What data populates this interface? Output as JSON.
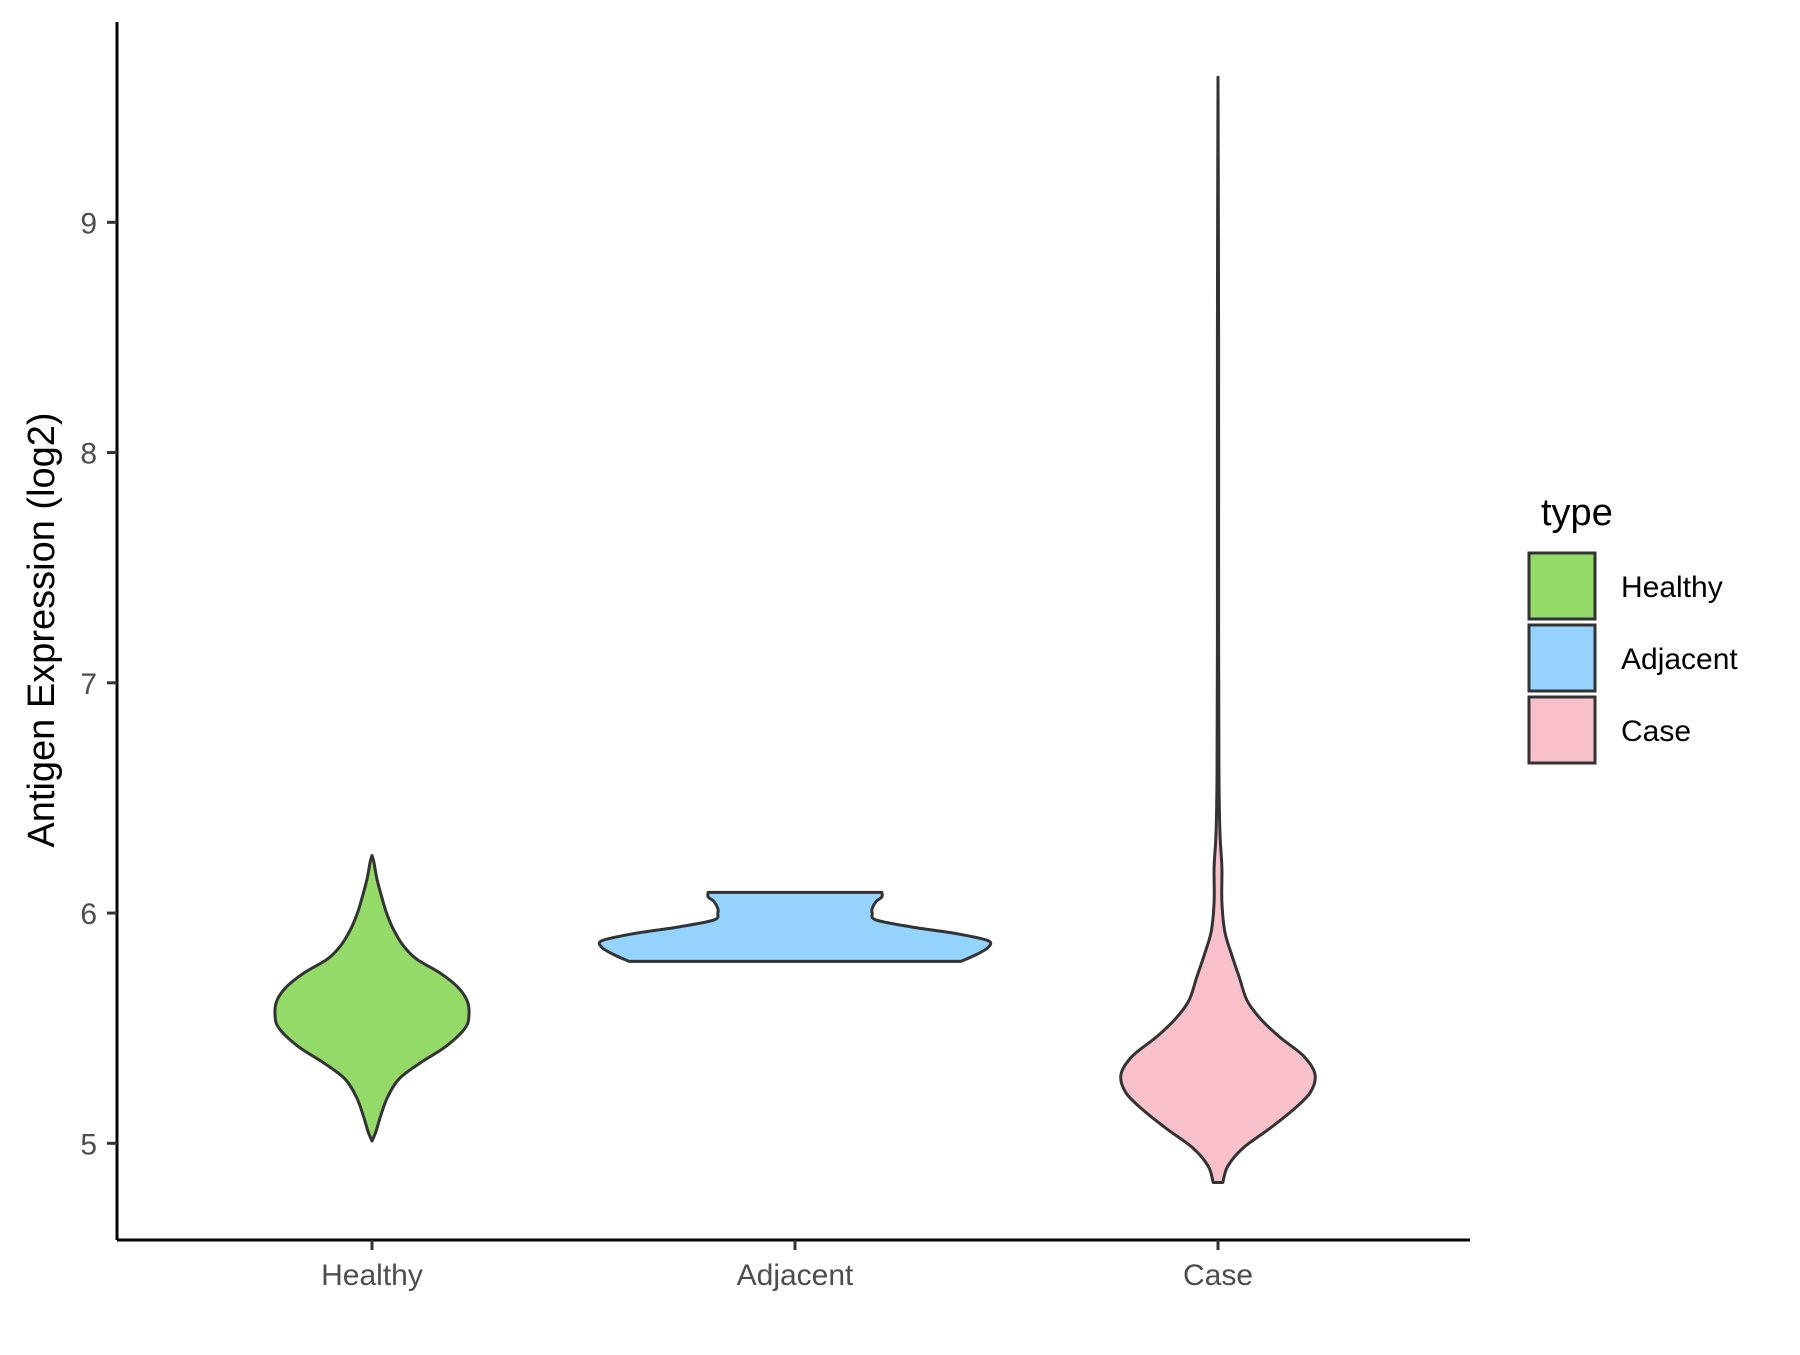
{
  "chart_data": {
    "type": "violin",
    "categories": [
      "Healthy",
      "Adjacent",
      "Case"
    ],
    "ylabel": "Antigen Expression (log2)",
    "xlabel": "",
    "ylim": [
      4.58,
      9.87
    ],
    "yticks": [
      5,
      6,
      7,
      8,
      9
    ],
    "grid": false,
    "legend": {
      "title": "type",
      "position": "right",
      "entries": [
        "Healthy",
        "Adjacent",
        "Case"
      ]
    },
    "colors": {
      "Healthy": "#93DA69",
      "Adjacent": "#93D3FE",
      "Case": "#F8C0CA",
      "outline": "#333333"
    },
    "series": [
      {
        "name": "Healthy",
        "min": 5.01,
        "max": 6.25,
        "profile": [
          [
            5.01,
            0.0
          ],
          [
            5.05,
            0.04
          ],
          [
            5.12,
            0.09
          ],
          [
            5.2,
            0.16
          ],
          [
            5.28,
            0.28
          ],
          [
            5.35,
            0.5
          ],
          [
            5.42,
            0.76
          ],
          [
            5.5,
            0.96
          ],
          [
            5.56,
            1.0
          ],
          [
            5.62,
            0.98
          ],
          [
            5.68,
            0.88
          ],
          [
            5.74,
            0.7
          ],
          [
            5.8,
            0.46
          ],
          [
            5.86,
            0.32
          ],
          [
            5.93,
            0.22
          ],
          [
            6.0,
            0.15
          ],
          [
            6.07,
            0.1
          ],
          [
            6.15,
            0.05
          ],
          [
            6.22,
            0.02
          ],
          [
            6.25,
            0.0
          ]
        ]
      },
      {
        "name": "Adjacent",
        "min": 5.79,
        "max": 6.09,
        "profile": [
          [
            5.79,
            0.86
          ],
          [
            5.82,
            0.94
          ],
          [
            5.85,
            1.0
          ],
          [
            5.88,
            1.0
          ],
          [
            5.91,
            0.84
          ],
          [
            5.94,
            0.6
          ],
          [
            5.97,
            0.42
          ],
          [
            6.0,
            0.4
          ],
          [
            6.02,
            0.4
          ],
          [
            6.05,
            0.42
          ],
          [
            6.07,
            0.45
          ],
          [
            6.09,
            0.45
          ]
        ]
      },
      {
        "name": "Case",
        "min": 4.83,
        "max": 9.63,
        "profile": [
          [
            4.83,
            0.05
          ],
          [
            4.9,
            0.1
          ],
          [
            4.98,
            0.26
          ],
          [
            5.06,
            0.52
          ],
          [
            5.14,
            0.76
          ],
          [
            5.22,
            0.95
          ],
          [
            5.3,
            1.0
          ],
          [
            5.38,
            0.88
          ],
          [
            5.46,
            0.64
          ],
          [
            5.54,
            0.44
          ],
          [
            5.62,
            0.3
          ],
          [
            5.72,
            0.22
          ],
          [
            5.82,
            0.14
          ],
          [
            5.92,
            0.07
          ],
          [
            6.05,
            0.04
          ],
          [
            6.2,
            0.04
          ],
          [
            6.35,
            0.02
          ],
          [
            6.6,
            0.01
          ],
          [
            7.2,
            0.006
          ],
          [
            8.5,
            0.006
          ],
          [
            9.63,
            0.0
          ]
        ]
      }
    ]
  }
}
